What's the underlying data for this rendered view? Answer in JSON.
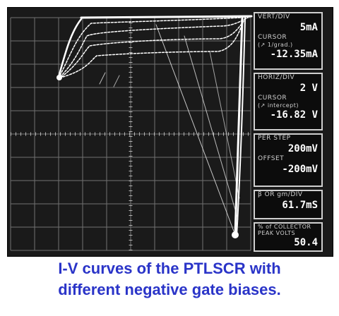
{
  "display": {
    "vert_div": {
      "label": "VERT/DIV",
      "value": "5mA"
    },
    "vert_cursor": {
      "label": "CURSOR",
      "sublabel": "(↗ 1/grad.)",
      "value": "-12.35mA"
    },
    "horiz_div": {
      "label": "HORIZ/DIV",
      "value": "2 V"
    },
    "horiz_cursor": {
      "label": "CURSOR",
      "sublabel": "(↗ intercept)",
      "value": "-16.82 V"
    },
    "per_step": {
      "label": "PER STEP",
      "value": "200mV"
    },
    "offset": {
      "label": "OFFSET",
      "value": "-200mV"
    },
    "gm_div": {
      "label": "β OR gm/DIV",
      "value": "61.7mS"
    },
    "collector_peak": {
      "label": "% of COLLECTOR",
      "label2": "PEAK VOLTS",
      "value": "50.4"
    }
  },
  "caption": {
    "line1": "I-V curves of the PTLSCR with",
    "line2": "different negative gate biases."
  },
  "colors": {
    "screen_bg": "#1a1a1a",
    "grid": "#9a9a9a",
    "trace": "#ffffff",
    "caption": "#2a34c8"
  }
}
